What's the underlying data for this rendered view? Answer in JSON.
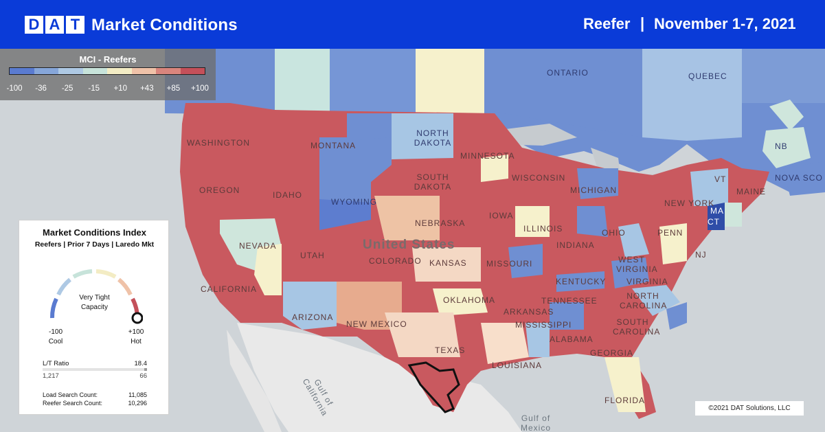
{
  "header": {
    "logo_letters": [
      "D",
      "A",
      "T"
    ],
    "title": "Market Conditions",
    "product": "Reefer",
    "separator": "|",
    "date_range": "November 1-7, 2021",
    "bg_color": "#0a3bd8"
  },
  "legend": {
    "title": "MCI - Reefers",
    "ticks": [
      "-100",
      "-36",
      "-25",
      "-15",
      "+10",
      "+43",
      "+85",
      "+100"
    ],
    "colors": [
      "#5a7bd0",
      "#86a6d9",
      "#aec9e4",
      "#c7e3da",
      "#f3ecc4",
      "#efc2a8",
      "#d9857d",
      "#c4505a"
    ]
  },
  "map": {
    "country_labels": [
      "United States"
    ],
    "state_labels": [
      "WASHINGTON",
      "MONTANA",
      "NORTH DAKOTA",
      "MINNESOTA",
      "SOUTH DAKOTA",
      "OREGON",
      "IDAHO",
      "WYOMING",
      "NEBRASKA",
      "IOWA",
      "WISCONSIN",
      "MICHIGAN",
      "NEVADA",
      "UTAH",
      "COLORADO",
      "KANSAS",
      "MISSOURI",
      "ILLINOIS",
      "INDIANA",
      "OHIO",
      "PENN",
      "NEW YORK",
      "MAINE",
      "CALIFORNIA",
      "ARIZONA",
      "NEW MEXICO",
      "OKLAHOMA",
      "ARKANSAS",
      "TENNESSEE",
      "KENTUCKY",
      "WEST VIRGINIA",
      "VIRGINIA",
      "NORTH CAROLINA",
      "SOUTH CAROLINA",
      "MISSISSIPPI",
      "ALABAMA",
      "GEORGIA",
      "LOUISIANA",
      "TEXAS",
      "FLORIDA",
      "NJ",
      "VT",
      "MA",
      "CT"
    ],
    "province_labels": [
      "ONTARIO",
      "QUEBEC",
      "NB",
      "NOVA SCO"
    ],
    "water_labels": [
      "Gulf of California",
      "Gulf of Mexico"
    ]
  },
  "card": {
    "title": "Market Conditions Index",
    "subtitle": "Reefers | Prior 7 Days | Laredo Mkt",
    "gauge_label_line1": "Very Tight",
    "gauge_label_line2": "Capacity",
    "gauge_value": 100,
    "min_value": "-100",
    "max_value": "+100",
    "min_label": "Cool",
    "max_label": "Hot",
    "lt_label": "L/T Ratio",
    "lt_ratio": "18.4",
    "loads": "1,217",
    "trucks": "66",
    "load_search_label": "Load Search Count:",
    "load_search_value": "11,085",
    "reefer_search_label": "Reefer Search Count:",
    "reefer_search_value": "10,296"
  },
  "copyright": "©2021 DAT Solutions, LLC"
}
